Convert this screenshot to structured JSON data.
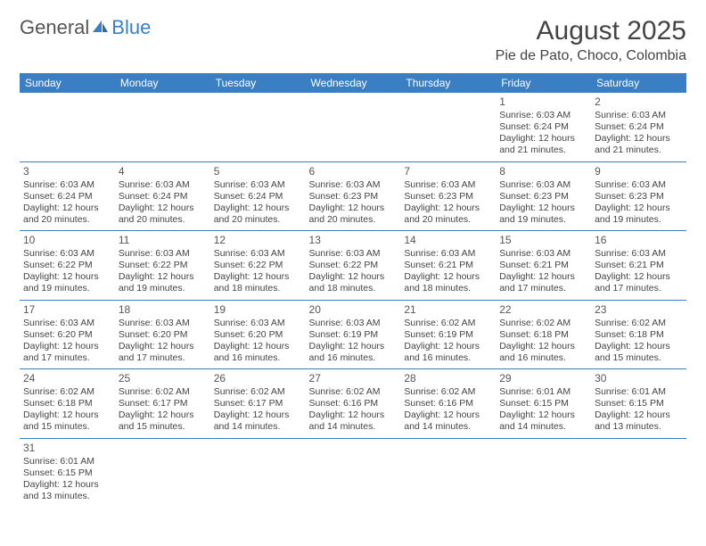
{
  "brand": {
    "part1": "General",
    "part2": "Blue",
    "accent_color": "#3a7fc4",
    "text_color": "#555555"
  },
  "title": "August 2025",
  "location": "Pie de Pato, Choco, Colombia",
  "header_bg": "#3a7fc4",
  "header_fg": "#ffffff",
  "weekdays": [
    "Sunday",
    "Monday",
    "Tuesday",
    "Wednesday",
    "Thursday",
    "Friday",
    "Saturday"
  ],
  "weeks": [
    [
      null,
      null,
      null,
      null,
      null,
      {
        "d": "1",
        "sr": "6:03 AM",
        "ss": "6:24 PM",
        "dl": "12 hours and 21 minutes."
      },
      {
        "d": "2",
        "sr": "6:03 AM",
        "ss": "6:24 PM",
        "dl": "12 hours and 21 minutes."
      }
    ],
    [
      {
        "d": "3",
        "sr": "6:03 AM",
        "ss": "6:24 PM",
        "dl": "12 hours and 20 minutes."
      },
      {
        "d": "4",
        "sr": "6:03 AM",
        "ss": "6:24 PM",
        "dl": "12 hours and 20 minutes."
      },
      {
        "d": "5",
        "sr": "6:03 AM",
        "ss": "6:24 PM",
        "dl": "12 hours and 20 minutes."
      },
      {
        "d": "6",
        "sr": "6:03 AM",
        "ss": "6:23 PM",
        "dl": "12 hours and 20 minutes."
      },
      {
        "d": "7",
        "sr": "6:03 AM",
        "ss": "6:23 PM",
        "dl": "12 hours and 20 minutes."
      },
      {
        "d": "8",
        "sr": "6:03 AM",
        "ss": "6:23 PM",
        "dl": "12 hours and 19 minutes."
      },
      {
        "d": "9",
        "sr": "6:03 AM",
        "ss": "6:23 PM",
        "dl": "12 hours and 19 minutes."
      }
    ],
    [
      {
        "d": "10",
        "sr": "6:03 AM",
        "ss": "6:22 PM",
        "dl": "12 hours and 19 minutes."
      },
      {
        "d": "11",
        "sr": "6:03 AM",
        "ss": "6:22 PM",
        "dl": "12 hours and 19 minutes."
      },
      {
        "d": "12",
        "sr": "6:03 AM",
        "ss": "6:22 PM",
        "dl": "12 hours and 18 minutes."
      },
      {
        "d": "13",
        "sr": "6:03 AM",
        "ss": "6:22 PM",
        "dl": "12 hours and 18 minutes."
      },
      {
        "d": "14",
        "sr": "6:03 AM",
        "ss": "6:21 PM",
        "dl": "12 hours and 18 minutes."
      },
      {
        "d": "15",
        "sr": "6:03 AM",
        "ss": "6:21 PM",
        "dl": "12 hours and 17 minutes."
      },
      {
        "d": "16",
        "sr": "6:03 AM",
        "ss": "6:21 PM",
        "dl": "12 hours and 17 minutes."
      }
    ],
    [
      {
        "d": "17",
        "sr": "6:03 AM",
        "ss": "6:20 PM",
        "dl": "12 hours and 17 minutes."
      },
      {
        "d": "18",
        "sr": "6:03 AM",
        "ss": "6:20 PM",
        "dl": "12 hours and 17 minutes."
      },
      {
        "d": "19",
        "sr": "6:03 AM",
        "ss": "6:20 PM",
        "dl": "12 hours and 16 minutes."
      },
      {
        "d": "20",
        "sr": "6:03 AM",
        "ss": "6:19 PM",
        "dl": "12 hours and 16 minutes."
      },
      {
        "d": "21",
        "sr": "6:02 AM",
        "ss": "6:19 PM",
        "dl": "12 hours and 16 minutes."
      },
      {
        "d": "22",
        "sr": "6:02 AM",
        "ss": "6:18 PM",
        "dl": "12 hours and 16 minutes."
      },
      {
        "d": "23",
        "sr": "6:02 AM",
        "ss": "6:18 PM",
        "dl": "12 hours and 15 minutes."
      }
    ],
    [
      {
        "d": "24",
        "sr": "6:02 AM",
        "ss": "6:18 PM",
        "dl": "12 hours and 15 minutes."
      },
      {
        "d": "25",
        "sr": "6:02 AM",
        "ss": "6:17 PM",
        "dl": "12 hours and 15 minutes."
      },
      {
        "d": "26",
        "sr": "6:02 AM",
        "ss": "6:17 PM",
        "dl": "12 hours and 14 minutes."
      },
      {
        "d": "27",
        "sr": "6:02 AM",
        "ss": "6:16 PM",
        "dl": "12 hours and 14 minutes."
      },
      {
        "d": "28",
        "sr": "6:02 AM",
        "ss": "6:16 PM",
        "dl": "12 hours and 14 minutes."
      },
      {
        "d": "29",
        "sr": "6:01 AM",
        "ss": "6:15 PM",
        "dl": "12 hours and 14 minutes."
      },
      {
        "d": "30",
        "sr": "6:01 AM",
        "ss": "6:15 PM",
        "dl": "12 hours and 13 minutes."
      }
    ],
    [
      {
        "d": "31",
        "sr": "6:01 AM",
        "ss": "6:15 PM",
        "dl": "12 hours and 13 minutes."
      },
      null,
      null,
      null,
      null,
      null,
      null
    ]
  ],
  "labels": {
    "sunrise": "Sunrise: ",
    "sunset": "Sunset: ",
    "daylight": "Daylight: "
  }
}
